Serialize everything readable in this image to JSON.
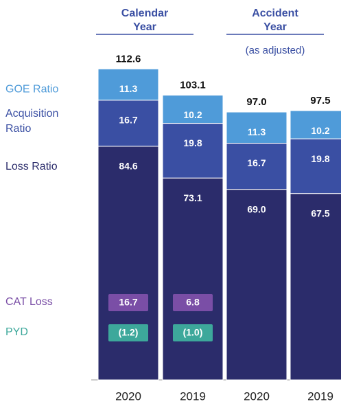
{
  "chart_data": {
    "type": "bar",
    "stacked": true,
    "categories": [
      "2020",
      "2019",
      "2020",
      "2019"
    ],
    "groups": [
      {
        "label": "Calendar Year"
      },
      {
        "label": "Accident Year",
        "sublabel": "(as adjusted)"
      }
    ],
    "series": [
      {
        "name": "Loss Ratio",
        "color": "#2b2c6b",
        "values": [
          84.6,
          73.1,
          69.0,
          67.5
        ],
        "value_labels": [
          "84.6",
          "73.1",
          "69.0",
          "67.5"
        ]
      },
      {
        "name": "Acquisition Ratio",
        "color": "#3a4fa3",
        "values": [
          16.7,
          19.8,
          16.7,
          19.8
        ],
        "value_labels": [
          "16.7",
          "19.8",
          "16.7",
          "19.8"
        ]
      },
      {
        "name": "GOE Ratio",
        "color": "#4f9bd9",
        "values": [
          11.3,
          10.2,
          11.3,
          10.2
        ],
        "value_labels": [
          "11.3",
          "10.2",
          "11.3",
          "10.2"
        ]
      }
    ],
    "totals": {
      "values": [
        112.6,
        103.1,
        97.0,
        97.5
      ],
      "value_labels": [
        "112.6",
        "103.1",
        "97.0",
        "97.5"
      ]
    },
    "annotations": [
      {
        "name": "CAT Loss",
        "color": "#7a4ea6",
        "values": [
          16.7,
          6.8,
          null,
          null
        ],
        "value_labels": [
          "16.7",
          "6.8",
          null,
          null
        ]
      },
      {
        "name": "PYD",
        "color": "#3da89b",
        "values": [
          -1.2,
          -1.0,
          null,
          null
        ],
        "value_labels": [
          "(1.2)",
          "(1.0)",
          null,
          null
        ]
      }
    ]
  }
}
